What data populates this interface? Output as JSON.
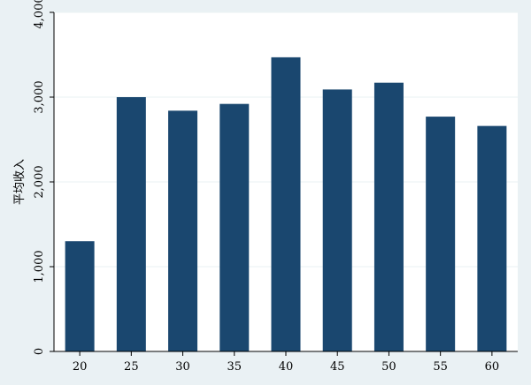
{
  "chart_data": {
    "type": "bar",
    "title": "",
    "xlabel": "",
    "ylabel": "平均收入",
    "categories": [
      "20",
      "25",
      "30",
      "35",
      "40",
      "45",
      "50",
      "55",
      "60"
    ],
    "values": [
      1300,
      3000,
      2840,
      2920,
      3470,
      3090,
      3170,
      2770,
      2660
    ],
    "ylim": [
      0,
      4000
    ],
    "yticks": [
      0,
      1000,
      2000,
      3000,
      4000
    ],
    "ytick_labels": [
      "0",
      "1,000",
      "2,000",
      "3,000",
      "4,000"
    ],
    "grid": true,
    "legend": "none",
    "colors": {
      "bar": "#1a476f",
      "outer_background": "#eaf1f4",
      "plot_background": "#ffffff",
      "grid": "#eaf2f3",
      "axis": "#000000"
    }
  }
}
